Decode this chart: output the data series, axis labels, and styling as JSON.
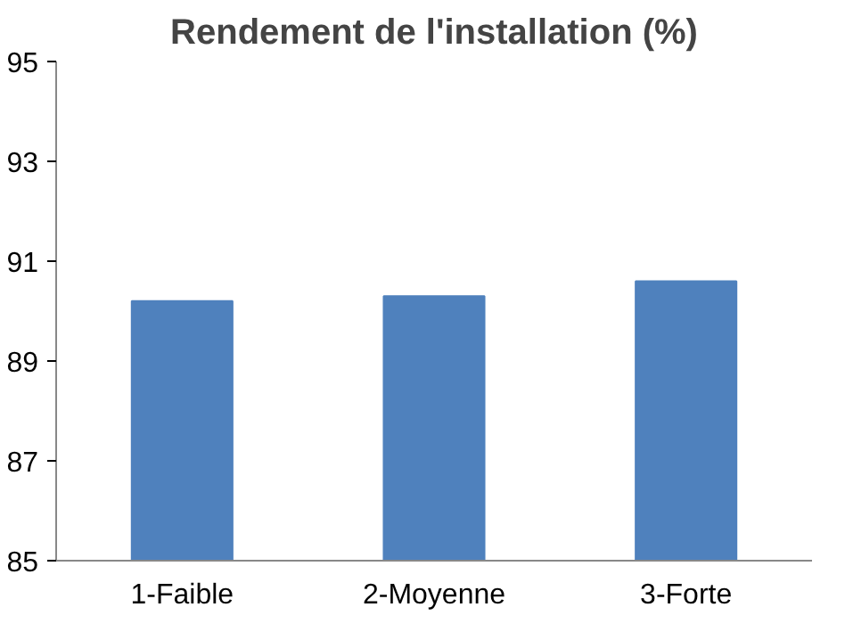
{
  "chart_data": {
    "type": "bar",
    "title": "Rendement de l'installation (%)",
    "categories": [
      "1-Faible",
      "2-Moyenne",
      "3-Forte"
    ],
    "values": [
      90.2,
      90.3,
      90.6
    ],
    "color": "#4f81bd",
    "ylim": [
      85,
      95
    ],
    "yticks": [
      85,
      87,
      89,
      91,
      93,
      95
    ],
    "grid": false
  }
}
